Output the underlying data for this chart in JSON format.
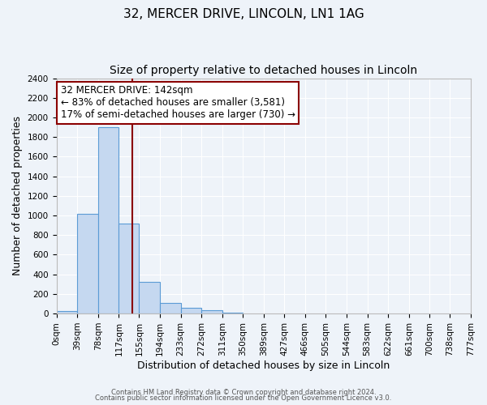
{
  "title": "32, MERCER DRIVE, LINCOLN, LN1 1AG",
  "subtitle": "Size of property relative to detached houses in Lincoln",
  "xlabel": "Distribution of detached houses by size in Lincoln",
  "ylabel": "Number of detached properties",
  "bin_edges": [
    0,
    39,
    78,
    117,
    155,
    194,
    233,
    272,
    311,
    350,
    389,
    427,
    466,
    505,
    544,
    583,
    622,
    661,
    700,
    738,
    777
  ],
  "bin_counts": [
    25,
    1020,
    1900,
    920,
    320,
    105,
    55,
    30,
    10,
    0,
    0,
    0,
    0,
    0,
    0,
    0,
    0,
    0,
    0,
    0
  ],
  "bar_color": "#c5d8f0",
  "bar_edge_color": "#5b9bd5",
  "property_size": 142,
  "vline_color": "#8b0000",
  "vline_x": 142,
  "annotation_line1": "32 MERCER DRIVE: 142sqm",
  "annotation_line2": "← 83% of detached houses are smaller (3,581)",
  "annotation_line3": "17% of semi-detached houses are larger (730) →",
  "annotation_box_edge": "#8b0000",
  "annotation_box_face": "white",
  "ylim": [
    0,
    2400
  ],
  "yticks": [
    0,
    200,
    400,
    600,
    800,
    1000,
    1200,
    1400,
    1600,
    1800,
    2000,
    2200,
    2400
  ],
  "tick_labels": [
    "0sqm",
    "39sqm",
    "78sqm",
    "117sqm",
    "155sqm",
    "194sqm",
    "233sqm",
    "272sqm",
    "311sqm",
    "350sqm",
    "389sqm",
    "427sqm",
    "466sqm",
    "505sqm",
    "544sqm",
    "583sqm",
    "622sqm",
    "661sqm",
    "700sqm",
    "738sqm",
    "777sqm"
  ],
  "footer_line1": "Contains HM Land Registry data © Crown copyright and database right 2024.",
  "footer_line2": "Contains public sector information licensed under the Open Government Licence v3.0.",
  "bg_color": "#eef3f9",
  "plot_bg_color": "#eef3f9",
  "grid_color": "white",
  "title_fontsize": 11,
  "subtitle_fontsize": 10,
  "axis_label_fontsize": 9,
  "tick_fontsize": 7.5,
  "annotation_fontsize": 8.5
}
